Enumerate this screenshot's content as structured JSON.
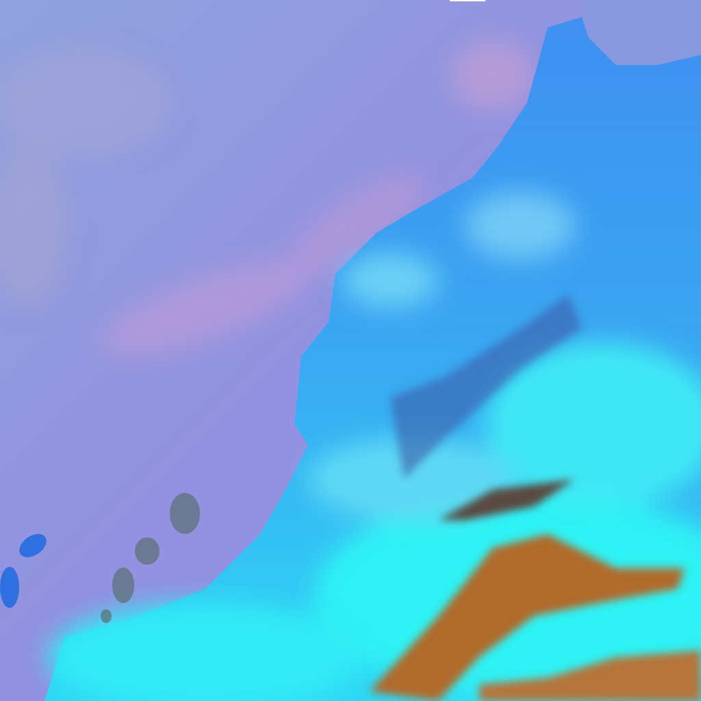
{
  "scene": {
    "kind": "false-color satellite image",
    "colors": {
      "ocean": "#8d8fe2",
      "ocean_haze": "#c39ad6",
      "land": "#3fa3f0",
      "cloud": "#22f0f5",
      "mountain": "#b06a2a",
      "island": "#2f6fe0"
    }
  }
}
